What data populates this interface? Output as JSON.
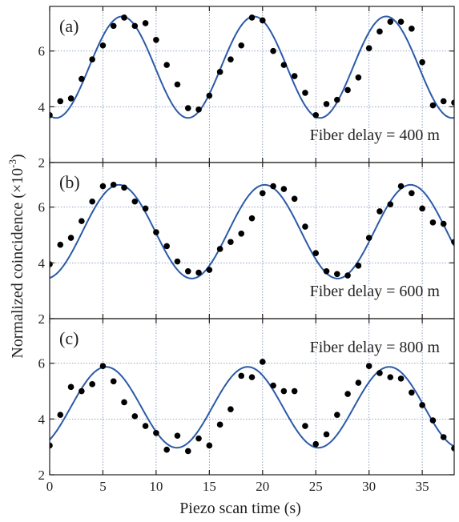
{
  "chart_data": {
    "shared_axis": {
      "xlabel": "Piezo scan time (s)",
      "ylabel": "Normalized coincidence (×10⁻³)",
      "ylabel_main": "Normalized coincidence (×10",
      "ylabel_exp": "-3",
      "ylabel_close": ")",
      "xlim": [
        0,
        38
      ],
      "ylim": [
        2,
        7.6
      ],
      "xticks": [
        0,
        5,
        10,
        15,
        20,
        25,
        30,
        35
      ],
      "yticks": [
        2,
        4,
        6
      ],
      "grid": true
    },
    "colors": {
      "fit": "#2b5aa8",
      "points": "#000000",
      "grid": "#6f86b3",
      "axis": "#231f20"
    },
    "panels": [
      {
        "type": "scatter",
        "label": "(a)",
        "annotation": "Fiber delay = 400 m",
        "annotation_pos": "bottom-right",
        "points": [
          [
            0,
            3.7
          ],
          [
            1,
            4.2
          ],
          [
            2,
            4.3
          ],
          [
            3,
            5.0
          ],
          [
            4,
            5.7
          ],
          [
            5,
            6.2
          ],
          [
            6,
            6.9
          ],
          [
            7,
            7.2
          ],
          [
            8,
            6.9
          ],
          [
            9,
            7.0
          ],
          [
            10,
            6.4
          ],
          [
            11,
            5.5
          ],
          [
            12,
            4.8
          ],
          [
            13,
            3.95
          ],
          [
            14,
            3.9
          ],
          [
            15,
            4.4
          ],
          [
            16,
            5.25
          ],
          [
            17,
            5.7
          ],
          [
            18,
            6.2
          ],
          [
            19,
            7.2
          ],
          [
            20,
            7.1
          ],
          [
            21,
            6.0
          ],
          [
            22,
            5.5
          ],
          [
            23,
            5.1
          ],
          [
            24,
            4.5
          ],
          [
            25,
            3.7
          ],
          [
            26,
            4.1
          ],
          [
            27,
            4.25
          ],
          [
            28,
            4.6
          ],
          [
            29,
            5.05
          ],
          [
            30,
            6.1
          ],
          [
            31,
            6.7
          ],
          [
            32,
            7.05
          ],
          [
            33,
            7.05
          ],
          [
            34,
            6.8
          ],
          [
            35,
            5.6
          ],
          [
            36,
            4.05
          ],
          [
            37,
            4.2
          ],
          [
            38,
            4.15
          ]
        ],
        "fit": {
          "function": "mean + amp*cos(2*pi*(t - peak)/period)",
          "mean": 5.42,
          "amp": 1.82,
          "period": 12.4,
          "peak": 6.8
        }
      },
      {
        "type": "scatter",
        "label": "(b)",
        "annotation": "Fiber delay = 600 m",
        "annotation_pos": "bottom-right",
        "points": [
          [
            0,
            3.95
          ],
          [
            1,
            4.65
          ],
          [
            2,
            4.9
          ],
          [
            3,
            5.5
          ],
          [
            4,
            6.2
          ],
          [
            5,
            6.75
          ],
          [
            6,
            6.8
          ],
          [
            7,
            6.7
          ],
          [
            8,
            6.2
          ],
          [
            9,
            5.95
          ],
          [
            10,
            5.1
          ],
          [
            11,
            4.6
          ],
          [
            12,
            4.05
          ],
          [
            13,
            3.7
          ],
          [
            14,
            3.65
          ],
          [
            15,
            3.75
          ],
          [
            16,
            4.5
          ],
          [
            17,
            4.75
          ],
          [
            18,
            5.05
          ],
          [
            19,
            5.6
          ],
          [
            20,
            6.5
          ],
          [
            21,
            6.75
          ],
          [
            22,
            6.65
          ],
          [
            23,
            6.3
          ],
          [
            24,
            5.3
          ],
          [
            25,
            4.35
          ],
          [
            26,
            3.7
          ],
          [
            27,
            3.6
          ],
          [
            28,
            3.55
          ],
          [
            29,
            3.9
          ],
          [
            30,
            4.9
          ],
          [
            31,
            5.85
          ],
          [
            32,
            6.1
          ],
          [
            33,
            6.75
          ],
          [
            34,
            6.5
          ],
          [
            35,
            5.95
          ],
          [
            36,
            5.45
          ],
          [
            37,
            5.4
          ],
          [
            38,
            4.75
          ]
        ],
        "fit": {
          "function": "mean + amp*cos(2*pi*(t - peak)/period)",
          "mean": 5.12,
          "amp": 1.68,
          "period": 13.7,
          "peak": 6.5
        }
      },
      {
        "type": "scatter",
        "label": "(c)",
        "annotation": "Fiber delay = 800 m",
        "annotation_pos": "top-right",
        "points": [
          [
            0,
            3.05
          ],
          [
            1,
            4.15
          ],
          [
            2,
            5.15
          ],
          [
            3,
            5.0
          ],
          [
            4,
            5.25
          ],
          [
            5,
            5.9
          ],
          [
            6,
            5.35
          ],
          [
            7,
            4.6
          ],
          [
            8,
            4.1
          ],
          [
            9,
            3.75
          ],
          [
            10,
            3.5
          ],
          [
            11,
            2.9
          ],
          [
            12,
            3.4
          ],
          [
            13,
            2.85
          ],
          [
            14,
            3.3
          ],
          [
            15,
            3.05
          ],
          [
            16,
            3.8
          ],
          [
            17,
            4.35
          ],
          [
            18,
            5.55
          ],
          [
            19,
            5.5
          ],
          [
            20,
            6.05
          ],
          [
            21,
            5.2
          ],
          [
            22,
            5.0
          ],
          [
            23,
            5.0
          ],
          [
            24,
            3.75
          ],
          [
            25,
            3.1
          ],
          [
            26,
            3.45
          ],
          [
            27,
            4.15
          ],
          [
            28,
            4.9
          ],
          [
            29,
            5.3
          ],
          [
            30,
            5.9
          ],
          [
            31,
            5.65
          ],
          [
            32,
            5.5
          ],
          [
            33,
            5.45
          ],
          [
            34,
            4.95
          ],
          [
            35,
            4.5
          ],
          [
            36,
            3.95
          ],
          [
            37,
            3.35
          ],
          [
            38,
            2.95
          ]
        ],
        "fit": {
          "function": "mean + amp*cos(2*pi*(t - peak)/period)",
          "mean": 4.42,
          "amp": 1.45,
          "period": 13.3,
          "peak": 5.3
        }
      }
    ]
  }
}
